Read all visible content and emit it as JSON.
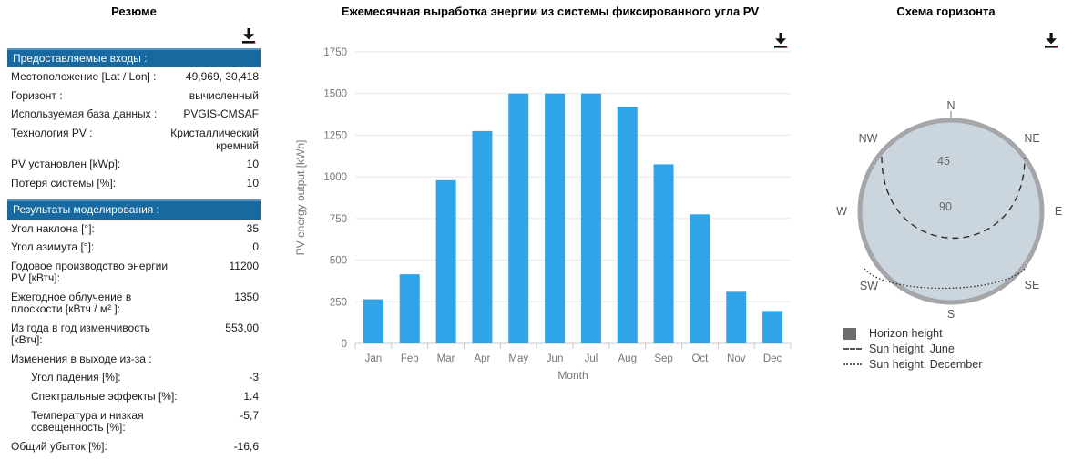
{
  "summary": {
    "title": "Резюме",
    "sections": [
      {
        "header": "Предоставляемые входы :",
        "rows": [
          {
            "label": "Местоположение [Lat / Lon] :",
            "value": "49,969, 30,418",
            "indent": false
          },
          {
            "label": "Горизонт :",
            "value": "вычисленный",
            "indent": false
          },
          {
            "label": "Используемая база данных :",
            "value": "PVGIS-CMSAF",
            "indent": false
          },
          {
            "label": "Технология PV :",
            "value": "Кристаллический кремний",
            "indent": false
          },
          {
            "label": "PV установлен [kWp]:",
            "value": "10",
            "indent": false
          },
          {
            "label": "Потеря системы [%]:",
            "value": "10",
            "indent": false
          }
        ]
      },
      {
        "header": "Результаты моделирования :",
        "rows": [
          {
            "label": "Угол наклона [°]:",
            "value": "35",
            "indent": false
          },
          {
            "label": "Угол азимута [°]:",
            "value": "0",
            "indent": false
          },
          {
            "label": "Годовое производство энергии PV [кВтч]:",
            "value": "11200",
            "indent": false
          },
          {
            "label": "Ежегодное облучение в плоскости [кВтч / м² ]:",
            "value": "1350",
            "indent": false
          },
          {
            "label": "Из года в год изменчивость [кВтч]:",
            "value": "553,00",
            "indent": false
          },
          {
            "label": "Изменения в выходе из-за :",
            "value": "",
            "indent": false
          },
          {
            "label": "Угол падения [%]:",
            "value": "-3",
            "indent": true
          },
          {
            "label": "Спектральные эффекты [%]:",
            "value": "1.4",
            "indent": true
          },
          {
            "label": "Температура и низкая освещенность [%]:",
            "value": "-5,7",
            "indent": true
          },
          {
            "label": "Общий убыток [%]:",
            "value": "-16,6",
            "indent": false
          }
        ]
      }
    ]
  },
  "chart_data": {
    "type": "bar",
    "title": "Ежемесячная выработка энергии из системы фиксированного угла PV",
    "categories": [
      "Jan",
      "Feb",
      "Mar",
      "Apr",
      "May",
      "Jun",
      "Jul",
      "Aug",
      "Sep",
      "Oct",
      "Nov",
      "Dec"
    ],
    "values": [
      265,
      415,
      980,
      1275,
      1500,
      1500,
      1500,
      1420,
      1075,
      775,
      310,
      195
    ],
    "xlabel": "Month",
    "ylabel": "PV energy output [kWh]",
    "ylim": [
      0,
      1750
    ],
    "ytick_step": 250,
    "grid": true,
    "legend_position": "none",
    "bar_color": "#2FA4E9"
  },
  "horizon": {
    "title": "Схема горизонта",
    "compass_labels": [
      "N",
      "NE",
      "E",
      "SE",
      "S",
      "SW",
      "W",
      "NW"
    ],
    "radial_labels": [
      "45",
      "90"
    ],
    "legend": [
      {
        "marker": "square",
        "label": "Horizon height"
      },
      {
        "marker": "dashed",
        "label": "Sun height, June"
      },
      {
        "marker": "dotted",
        "label": "Sun height, December"
      }
    ]
  },
  "colors": {
    "header_blue": "#1769A0",
    "header_blue_light": "#5795C2",
    "bar_blue": "#2FA4E9",
    "grid_line": "#E5E5E5",
    "axis_line": "#C8C8C8",
    "axis_text": "#757575",
    "horizon_fill": "#CBD5DD",
    "horizon_ring": "#A4A6A9",
    "legend_square": "#6B6C6E",
    "download_red": "#CC0000"
  }
}
